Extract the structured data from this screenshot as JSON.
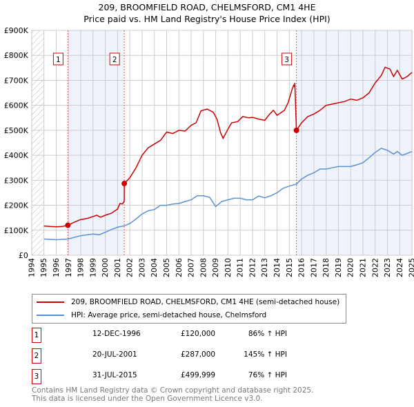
{
  "chart_data": {
    "type": "line",
    "title": "209, BROOMFIELD ROAD, CHELMSFORD, CM1 4HE",
    "subtitle": "Price paid vs. HM Land Registry's House Price Index (HPI)",
    "xlim": [
      1994,
      2025
    ],
    "ylim": [
      0,
      900000
    ],
    "x_ticks": [
      "1994",
      "1995",
      "1996",
      "1997",
      "1998",
      "1999",
      "2000",
      "2001",
      "2002",
      "2003",
      "2004",
      "2005",
      "2006",
      "2007",
      "2008",
      "2009",
      "2010",
      "2011",
      "2012",
      "2013",
      "2014",
      "2015",
      "2016",
      "2017",
      "2018",
      "2019",
      "2020",
      "2021",
      "2022",
      "2023",
      "2024",
      "2025"
    ],
    "y_ticks": [
      {
        "v": 0,
        "label": "£0"
      },
      {
        "v": 100000,
        "label": "£100K"
      },
      {
        "v": 200000,
        "label": "£200K"
      },
      {
        "v": 300000,
        "label": "£300K"
      },
      {
        "v": 400000,
        "label": "£400K"
      },
      {
        "v": 500000,
        "label": "£500K"
      },
      {
        "v": 600000,
        "label": "£600K"
      },
      {
        "v": 700000,
        "label": "£700K"
      },
      {
        "v": 800000,
        "label": "£800K"
      },
      {
        "v": 900000,
        "label": "£900K"
      }
    ],
    "grid": true,
    "series": [
      {
        "name": "209, BROOMFIELD ROAD, CHELMSFORD, CM1 4HE (semi-detached house)",
        "color": "#cc0000",
        "points": [
          [
            1995,
            117
          ],
          [
            1995.5,
            115
          ],
          [
            1996,
            114
          ],
          [
            1996.5,
            115
          ],
          [
            1996.95,
            120
          ],
          [
            1997.5,
            133
          ],
          [
            1998,
            143
          ],
          [
            1998.5,
            147
          ],
          [
            1999,
            155
          ],
          [
            1999.3,
            160
          ],
          [
            1999.6,
            152
          ],
          [
            2000,
            160
          ],
          [
            2000.5,
            170
          ],
          [
            2001,
            185
          ],
          [
            2001.2,
            190
          ],
          [
            2001.4,
            207
          ],
          [
            2001.7,
            205
          ],
          [
            2002.3,
            215
          ],
          [
            2002.35,
            287
          ],
          [
            2002.6,
            305
          ],
          [
            2003,
            315
          ],
          [
            2003.5,
            355
          ],
          [
            2004,
            400
          ],
          [
            2004.5,
            430
          ],
          [
            2005,
            445
          ],
          [
            2005.5,
            460
          ],
          [
            2006,
            493
          ],
          [
            2006.5,
            487
          ],
          [
            2007,
            500
          ],
          [
            2007.5,
            497
          ],
          [
            2008,
            520
          ],
          [
            2008.5,
            532
          ],
          [
            2008.8,
            575
          ],
          [
            2009.3,
            585
          ],
          [
            2009.8,
            570
          ],
          [
            2010.1,
            545
          ],
          [
            2010.4,
            490
          ],
          [
            2010.6,
            468
          ],
          [
            2011,
            505
          ],
          [
            2011.3,
            530
          ],
          [
            2011.8,
            535
          ],
          [
            2012.2,
            555
          ],
          [
            2012.7,
            550
          ],
          [
            2013,
            545
          ],
          [
            2013.5,
            540
          ],
          [
            2013.8,
            565
          ],
          [
            2014.3,
            580
          ],
          [
            2014.6,
            560
          ],
          [
            2015.2,
            580
          ],
          [
            2015.7,
            610
          ],
          [
            2016.2,
            650
          ],
          [
            2016.6,
            680
          ],
          [
            2016.9,
            675
          ],
          [
            2017.0,
            690
          ],
          [
            2017.08,
            500
          ]
        ],
        "note": "see sales below"
      },
      {
        "name": "HPI: Average price, semi-detached house, Chelmsford",
        "color": "#5b8fd4"
      }
    ],
    "red_points": [
      [
        1995,
        117
      ],
      [
        1995.5,
        115
      ],
      [
        1996,
        114
      ],
      [
        1996.5,
        115
      ],
      [
        1996.95,
        120
      ],
      [
        1997.5,
        133
      ],
      [
        1998,
        143
      ],
      [
        1998.5,
        147
      ],
      [
        1999,
        155
      ],
      [
        1999.3,
        160
      ],
      [
        1999.6,
        152
      ],
      [
        2000,
        160
      ],
      [
        2000.5,
        168
      ],
      [
        2001,
        185
      ],
      [
        2001.2,
        207
      ],
      [
        2001.4,
        205
      ],
      [
        2001.54,
        216
      ],
      [
        2001.55,
        287
      ],
      [
        2002,
        310
      ],
      [
        2002.5,
        350
      ],
      [
        2003,
        400
      ],
      [
        2003.5,
        430
      ],
      [
        2004,
        445
      ],
      [
        2004.5,
        460
      ],
      [
        2005,
        493
      ],
      [
        2005.5,
        487
      ],
      [
        2006,
        500
      ],
      [
        2006.5,
        497
      ],
      [
        2007,
        520
      ],
      [
        2007.4,
        530
      ],
      [
        2007.8,
        578
      ],
      [
        2008.3,
        585
      ],
      [
        2008.8,
        572
      ],
      [
        2009.1,
        545
      ],
      [
        2009.4,
        490
      ],
      [
        2009.6,
        468
      ],
      [
        2010,
        505
      ],
      [
        2010.3,
        530
      ],
      [
        2010.8,
        535
      ],
      [
        2011.2,
        555
      ],
      [
        2011.7,
        550
      ],
      [
        2012,
        552
      ],
      [
        2012.5,
        545
      ],
      [
        2013,
        540
      ],
      [
        2013.4,
        565
      ],
      [
        2013.7,
        580
      ],
      [
        2014,
        560
      ],
      [
        2014.6,
        580
      ],
      [
        2014.9,
        610
      ],
      [
        2015.2,
        660
      ],
      [
        2015.35,
        680
      ],
      [
        2015.42,
        675
      ],
      [
        2015.45,
        690
      ],
      [
        2015.58,
        500
      ],
      [
        2016,
        530
      ],
      [
        2016.5,
        555
      ],
      [
        2017,
        565
      ],
      [
        2017.5,
        580
      ],
      [
        2018,
        600
      ],
      [
        2018.5,
        605
      ],
      [
        2019,
        610
      ],
      [
        2019.5,
        615
      ],
      [
        2020,
        625
      ],
      [
        2020.5,
        620
      ],
      [
        2021,
        630
      ],
      [
        2021.5,
        650
      ],
      [
        2022,
        690
      ],
      [
        2022.5,
        720
      ],
      [
        2022.8,
        752
      ],
      [
        2023.2,
        745
      ],
      [
        2023.5,
        715
      ],
      [
        2023.8,
        740
      ],
      [
        2024.2,
        705
      ],
      [
        2024.6,
        715
      ],
      [
        2025,
        732
      ]
    ],
    "hpi_points": [
      [
        1995,
        65
      ],
      [
        1996,
        62
      ],
      [
        1996.95,
        65
      ],
      [
        1998,
        78
      ],
      [
        1999,
        85
      ],
      [
        1999.5,
        82
      ],
      [
        2000,
        92
      ],
      [
        2000.5,
        103
      ],
      [
        2001,
        112
      ],
      [
        2001.55,
        118
      ],
      [
        2002,
        127
      ],
      [
        2002.5,
        145
      ],
      [
        2003,
        165
      ],
      [
        2003.5,
        178
      ],
      [
        2004,
        183
      ],
      [
        2004.5,
        200
      ],
      [
        2005,
        200
      ],
      [
        2005.5,
        205
      ],
      [
        2006,
        207
      ],
      [
        2006.5,
        215
      ],
      [
        2007,
        222
      ],
      [
        2007.5,
        238
      ],
      [
        2008,
        238
      ],
      [
        2008.5,
        232
      ],
      [
        2009,
        195
      ],
      [
        2009.5,
        215
      ],
      [
        2010,
        222
      ],
      [
        2010.5,
        228
      ],
      [
        2011,
        228
      ],
      [
        2011.5,
        222
      ],
      [
        2012,
        222
      ],
      [
        2012.5,
        237
      ],
      [
        2013,
        230
      ],
      [
        2013.5,
        238
      ],
      [
        2014,
        250
      ],
      [
        2014.5,
        268
      ],
      [
        2015,
        277
      ],
      [
        2015.58,
        285
      ],
      [
        2016,
        305
      ],
      [
        2016.5,
        320
      ],
      [
        2017,
        330
      ],
      [
        2017.5,
        345
      ],
      [
        2018,
        345
      ],
      [
        2018.5,
        350
      ],
      [
        2019,
        355
      ],
      [
        2019.5,
        355
      ],
      [
        2020,
        355
      ],
      [
        2020.5,
        362
      ],
      [
        2021,
        370
      ],
      [
        2021.5,
        390
      ],
      [
        2022,
        412
      ],
      [
        2022.5,
        428
      ],
      [
        2023,
        420
      ],
      [
        2023.5,
        405
      ],
      [
        2023.8,
        415
      ],
      [
        2024.2,
        400
      ],
      [
        2025,
        415
      ]
    ],
    "sales": [
      {
        "label": "1",
        "year": 1996.95,
        "value": 120
      },
      {
        "label": "2",
        "year": 2001.55,
        "value": 287
      },
      {
        "label": "3",
        "year": 2015.58,
        "value": 499.999
      }
    ]
  },
  "legend": {
    "red": "209, BROOMFIELD ROAD, CHELMSFORD, CM1 4HE (semi-detached house)",
    "blue": "HPI: Average price, semi-detached house, Chelmsford"
  },
  "transactions": [
    {
      "num": "1",
      "date": "12-DEC-1996",
      "price": "£120,000",
      "hpi": "86% ↑ HPI"
    },
    {
      "num": "2",
      "date": "20-JUL-2001",
      "price": "£287,000",
      "hpi": "145% ↑ HPI"
    },
    {
      "num": "3",
      "date": "31-JUL-2015",
      "price": "£499,999",
      "hpi": "76% ↑ HPI"
    }
  ],
  "footer": {
    "line1": "Contains HM Land Registry data © Crown copyright and database right 2025.",
    "line2": "This data is licensed under the Open Government Licence v3.0."
  }
}
